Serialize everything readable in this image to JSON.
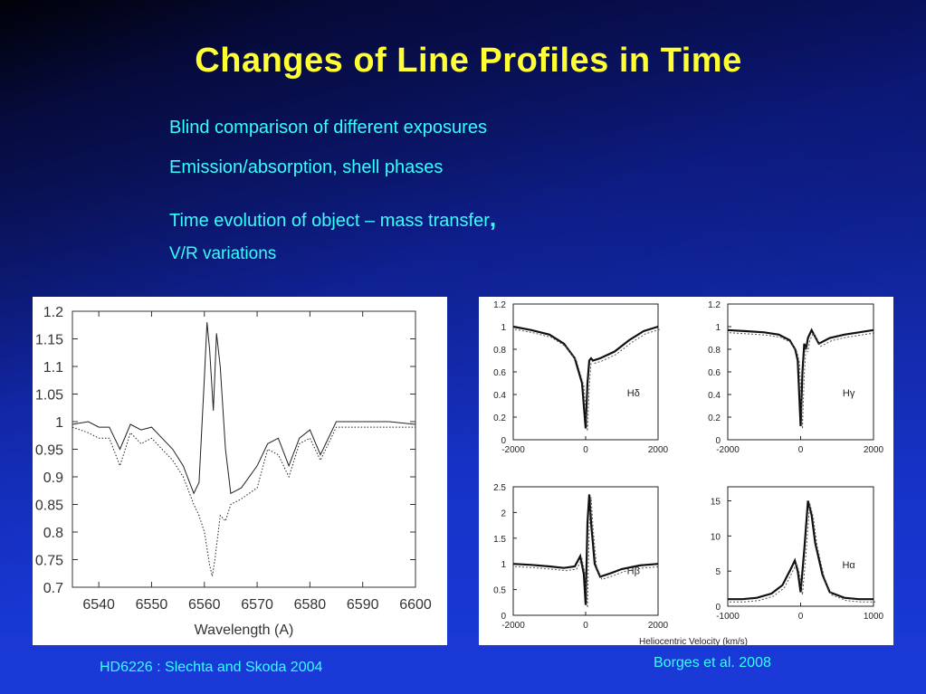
{
  "slide": {
    "title": "Changes of Line Profiles in Time",
    "bullets": [
      "Blind comparison of different exposures",
      "Emission/absorption, shell phases",
      "Time evolution of object – mass transfer",
      "V/R variations"
    ],
    "bullet3_suffix": ",",
    "caption_left": "HD6226 : Slechta and Skoda 2004",
    "caption_right": "Borges et al. 2008"
  },
  "chart_data": [
    {
      "type": "line",
      "xlabel": "Wavelength (A)",
      "ylabel": "",
      "xlim": [
        6535,
        6600
      ],
      "ylim": [
        0.7,
        1.2
      ],
      "xticks": [
        "6540",
        "6550",
        "6560",
        "6570",
        "6580",
        "6590",
        "6600"
      ],
      "yticks": [
        "1.2",
        "1.15",
        "1.1",
        "1.05",
        "1",
        "0.95",
        "0.9",
        "0.85",
        "0.8",
        "0.75",
        "0.7"
      ],
      "grid": false,
      "series": [
        {
          "style": "solid",
          "x": [
            6535,
            6538,
            6540,
            6542,
            6544,
            6546,
            6548,
            6550,
            6552,
            6554,
            6556,
            6558,
            6559,
            6560,
            6560.5,
            6561,
            6561.7,
            6562.3,
            6563,
            6564,
            6565,
            6567,
            6570,
            6572,
            6574,
            6576,
            6578,
            6580,
            6582,
            6585,
            6590,
            6595,
            6600
          ],
          "y": [
            0.995,
            1.0,
            0.99,
            0.99,
            0.95,
            0.995,
            0.985,
            0.99,
            0.97,
            0.95,
            0.92,
            0.87,
            0.89,
            1.08,
            1.18,
            1.13,
            1.02,
            1.16,
            1.1,
            0.95,
            0.87,
            0.88,
            0.92,
            0.96,
            0.97,
            0.92,
            0.97,
            0.985,
            0.94,
            1.0,
            1.0,
            1.0,
            0.995
          ]
        },
        {
          "style": "dotted",
          "x": [
            6535,
            6538,
            6540,
            6542,
            6544,
            6546,
            6548,
            6550,
            6552,
            6554,
            6556,
            6558,
            6559,
            6560,
            6561,
            6561.5,
            6562,
            6563,
            6564,
            6565,
            6567,
            6570,
            6572,
            6574,
            6576,
            6578,
            6580,
            6582,
            6585,
            6590,
            6595,
            6600
          ],
          "y": [
            0.99,
            0.98,
            0.97,
            0.97,
            0.92,
            0.98,
            0.96,
            0.97,
            0.95,
            0.93,
            0.9,
            0.85,
            0.83,
            0.8,
            0.74,
            0.72,
            0.75,
            0.83,
            0.82,
            0.85,
            0.86,
            0.88,
            0.95,
            0.94,
            0.9,
            0.96,
            0.97,
            0.93,
            0.99,
            0.99,
            0.99,
            0.99
          ]
        }
      ]
    },
    {
      "type": "line",
      "xlabel": "Heliocentric Velocity (km/s)",
      "panels": [
        {
          "label": "Hδ",
          "xlim": [
            -2000,
            2000
          ],
          "ylim": [
            0,
            1.2
          ],
          "xticks": [
            "-2000",
            "0",
            "2000"
          ],
          "yticks": [
            "1.2",
            "1",
            "0.8",
            "0.6",
            "0.4",
            "0.2",
            "0"
          ],
          "x": [
            -2000,
            -1500,
            -1000,
            -600,
            -300,
            -100,
            0,
            50,
            100,
            150,
            200,
            400,
            800,
            1200,
            1600,
            2000
          ],
          "y": [
            1.0,
            0.97,
            0.93,
            0.85,
            0.72,
            0.5,
            0.1,
            0.5,
            0.7,
            0.72,
            0.7,
            0.72,
            0.78,
            0.88,
            0.96,
            1.0
          ]
        },
        {
          "label": "Hγ",
          "xlim": [
            -2000,
            2000
          ],
          "ylim": [
            0,
            1.2
          ],
          "xticks": [
            "-2000",
            "0",
            "2000"
          ],
          "yticks": [
            "1.2",
            "1",
            "0.8",
            "0.6",
            "0.4",
            "0.2",
            "0"
          ],
          "x": [
            -2000,
            -1500,
            -1000,
            -600,
            -300,
            -150,
            -80,
            0,
            50,
            100,
            150,
            200,
            300,
            500,
            800,
            1200,
            1600,
            2000
          ],
          "y": [
            0.97,
            0.96,
            0.95,
            0.93,
            0.88,
            0.8,
            0.7,
            0.12,
            0.6,
            0.85,
            0.8,
            0.9,
            0.97,
            0.85,
            0.9,
            0.93,
            0.95,
            0.97
          ]
        },
        {
          "label": "Hβ",
          "xlim": [
            -2000,
            2000
          ],
          "ylim": [
            0,
            2.5
          ],
          "xticks": [
            "-2000",
            "0",
            "2000"
          ],
          "yticks": [
            "2.5",
            "2",
            "1.5",
            "1",
            "0.5",
            "0"
          ],
          "x": [
            -2000,
            -1500,
            -1000,
            -600,
            -300,
            -150,
            -50,
            0,
            50,
            100,
            150,
            250,
            400,
            700,
            1000,
            1500,
            2000
          ],
          "y": [
            1.0,
            0.98,
            0.95,
            0.92,
            0.95,
            1.15,
            0.8,
            0.2,
            1.8,
            2.35,
            1.8,
            1.0,
            0.75,
            0.82,
            0.9,
            0.97,
            1.0
          ]
        },
        {
          "label": "Hα",
          "xlim": [
            -1000,
            1000
          ],
          "ylim": [
            0,
            17
          ],
          "xticks": [
            "-1000",
            "0",
            "1000"
          ],
          "yticks": [
            "15",
            "10",
            "5",
            "0"
          ],
          "x": [
            -1000,
            -800,
            -600,
            -400,
            -250,
            -150,
            -80,
            -40,
            0,
            50,
            100,
            150,
            200,
            300,
            400,
            600,
            800,
            1000
          ],
          "y": [
            1.0,
            1.0,
            1.2,
            1.8,
            3.0,
            5.0,
            6.5,
            5.0,
            2.0,
            8.0,
            15.0,
            13.0,
            9.0,
            4.5,
            2.0,
            1.2,
            1.0,
            1.0
          ]
        }
      ]
    }
  ]
}
